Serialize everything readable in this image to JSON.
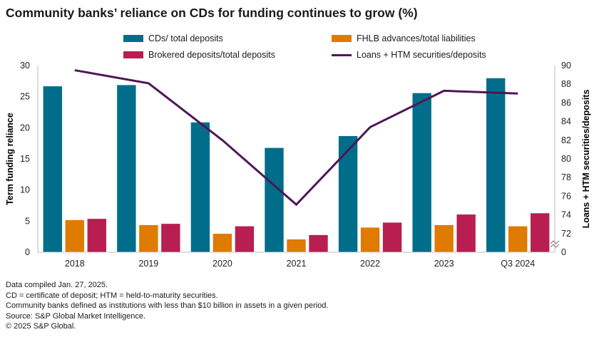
{
  "title": "Community banks’ reliance on CDs for funding continues to grow (%)",
  "notes": [
    "Data compiled Jan. 27, 2025.",
    "CD = certificate of deposit; HTM = held-to-maturity securities.",
    "Community banks defined as institutions with less than $10 billion in assets in a given period.",
    "Source: S&P Global Market Intelligence.",
    "© 2025 S&P Global."
  ],
  "chart_data": {
    "type": "bar",
    "title": "Community banks’ reliance on CDs for funding continues to grow (%)",
    "categories": [
      "2018",
      "2019",
      "2020",
      "2021",
      "2022",
      "2023",
      "Q3 2024"
    ],
    "ylabel": "Term funding reliance",
    "ylim": [
      0,
      30
    ],
    "yticks": [
      "0",
      "5",
      "10",
      "15",
      "20",
      "25",
      "30"
    ],
    "y2label": "Loans + HTM securities/deposits",
    "y2lim": [
      70,
      90
    ],
    "y2ticks": [
      "0",
      "72",
      "74",
      "76",
      "78",
      "80",
      "82",
      "84",
      "86",
      "88",
      "90"
    ],
    "y2_axis_break": true,
    "legend_position": "top",
    "series": [
      {
        "name": "CDs/ total deposits",
        "type": "bar",
        "axis": "left",
        "color": "#006e8a",
        "values": [
          26.7,
          26.9,
          20.9,
          16.8,
          18.7,
          25.6,
          28.0
        ]
      },
      {
        "name": "FHLB advances/total liabilities",
        "type": "bar",
        "axis": "left",
        "color": "#de7b00",
        "values": [
          5.2,
          4.4,
          3.0,
          2.1,
          4.0,
          4.4,
          4.2
        ]
      },
      {
        "name": "Brokered deposits/total deposits",
        "type": "bar",
        "axis": "left",
        "color": "#b81f50",
        "values": [
          5.4,
          4.6,
          4.2,
          2.8,
          4.8,
          6.1,
          6.3
        ]
      },
      {
        "name": "Loans + HTM securities/deposits",
        "type": "line",
        "axis": "right",
        "color": "#4f1656",
        "values": [
          89.5,
          88.1,
          82.0,
          75.1,
          83.4,
          87.3,
          87.0
        ]
      }
    ]
  }
}
